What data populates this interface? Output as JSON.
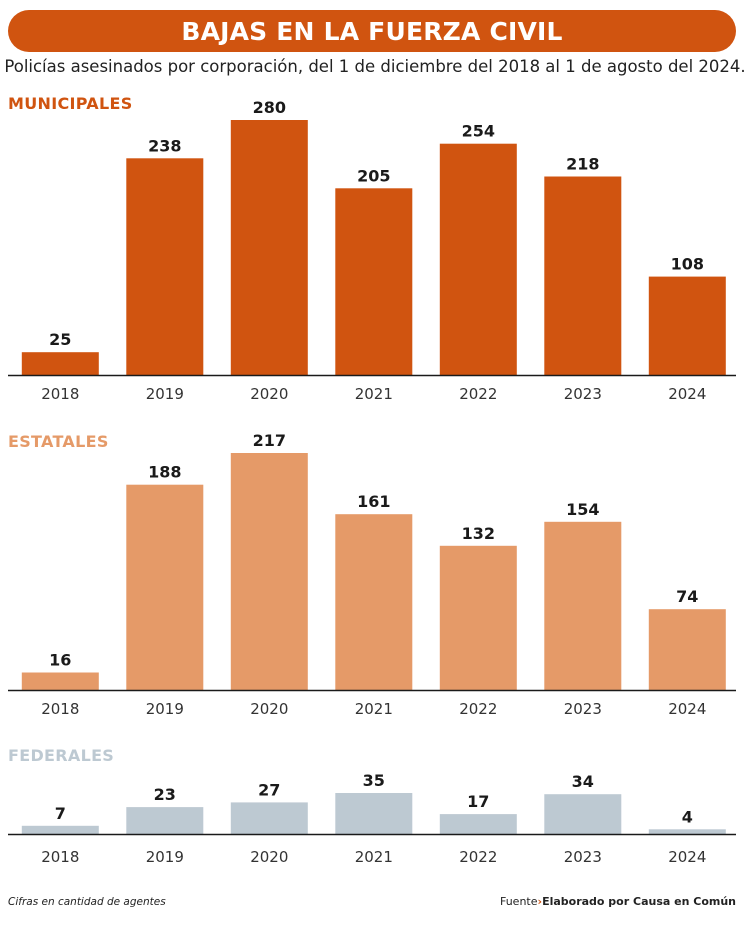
{
  "header": {
    "title": "BAJAS EN LA FUERZA CIVIL",
    "subtitle": "Policías asesinados por corporación, del 1 de diciembre del 2018 al 1 de agosto del 2024."
  },
  "chart_data": [
    {
      "type": "bar",
      "title": "MUNICIPALES",
      "color": "#d05410",
      "categories": [
        "2018",
        "2019",
        "2020",
        "2021",
        "2022",
        "2023",
        "2024"
      ],
      "values": [
        25,
        238,
        280,
        205,
        254,
        218,
        108
      ],
      "ylim": [
        0,
        280
      ]
    },
    {
      "type": "bar",
      "title": "ESTATALES",
      "color": "#e59a68",
      "categories": [
        "2018",
        "2019",
        "2020",
        "2021",
        "2022",
        "2023",
        "2024"
      ],
      "values": [
        16,
        188,
        217,
        161,
        132,
        154,
        74
      ],
      "ylim": [
        0,
        217
      ]
    },
    {
      "type": "bar",
      "title": "FEDERALES",
      "color": "#bdc9d2",
      "categories": [
        "2018",
        "2019",
        "2020",
        "2021",
        "2022",
        "2023",
        "2024"
      ],
      "values": [
        7,
        23,
        27,
        35,
        17,
        34,
        4
      ],
      "ylim": [
        0,
        35
      ]
    }
  ],
  "footer": {
    "note": "Cifras en cantidad de agentes",
    "source_label": "Fuente",
    "source_arrow": "›",
    "source_text": "Elaborado por Causa en Común"
  }
}
